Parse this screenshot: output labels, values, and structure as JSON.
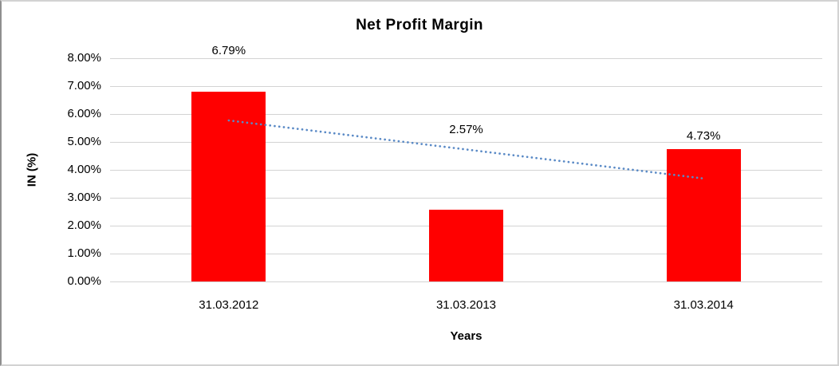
{
  "chart_data": {
    "type": "bar",
    "title": "Net Profit Margin",
    "xlabel": "Years",
    "ylabel": "IN (%)",
    "categories": [
      "31.03.2012",
      "31.03.2013",
      "31.03.2014"
    ],
    "values": [
      6.79,
      2.57,
      4.73
    ],
    "data_labels": [
      "6.79%",
      "2.57%",
      "4.73%"
    ],
    "data_label_y_values": [
      8.26,
      5.42,
      5.21
    ],
    "y_ticks": [
      "0.00%",
      "1.00%",
      "2.00%",
      "3.00%",
      "4.00%",
      "5.00%",
      "6.00%",
      "7.00%",
      "8.00%"
    ],
    "ylim": [
      0,
      8
    ],
    "grid": true,
    "legend": false,
    "bar_color": "#ff0000",
    "gridline_color": "#d3d3d3",
    "text_color": "#000000",
    "trendline": {
      "style": "dotted",
      "color": "#5a8ac6",
      "category_span": [
        0,
        2
      ],
      "y_values": [
        5.77,
        3.69
      ]
    }
  }
}
